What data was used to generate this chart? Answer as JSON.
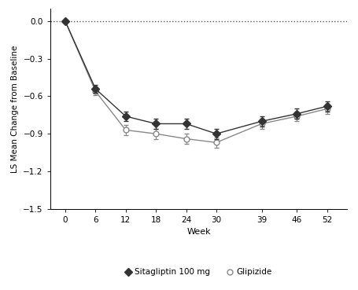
{
  "weeks": [
    0,
    6,
    12,
    18,
    24,
    30,
    39,
    46,
    52
  ],
  "sitagliptin": [
    0.0,
    -0.54,
    -0.76,
    -0.82,
    -0.82,
    -0.9,
    -0.8,
    -0.74,
    -0.68
  ],
  "sitagliptin_err": [
    0.0,
    0.03,
    0.04,
    0.04,
    0.04,
    0.04,
    0.04,
    0.04,
    0.04
  ],
  "glipizide": [
    0.0,
    -0.56,
    -0.87,
    -0.9,
    -0.94,
    -0.97,
    -0.82,
    -0.76,
    -0.7
  ],
  "glipizide_err": [
    0.0,
    0.03,
    0.04,
    0.04,
    0.04,
    0.04,
    0.04,
    0.04,
    0.04
  ],
  "sitagliptin_color": "#333333",
  "glipizide_color": "#888888",
  "xlabel": "Week",
  "ylabel": "LS Mean Change from Baseline",
  "ylim": [
    -1.5,
    0.1
  ],
  "yticks": [
    0.0,
    -0.3,
    -0.6,
    -0.9,
    -1.2,
    -1.5
  ],
  "xticks": [
    0,
    6,
    12,
    18,
    24,
    30,
    39,
    46,
    52
  ],
  "legend_sitagliptin": "Sitagliptin 100 mg",
  "legend_glipizide": "Glipizide",
  "background_color": "#ffffff",
  "dotted_line_y": 0.0
}
